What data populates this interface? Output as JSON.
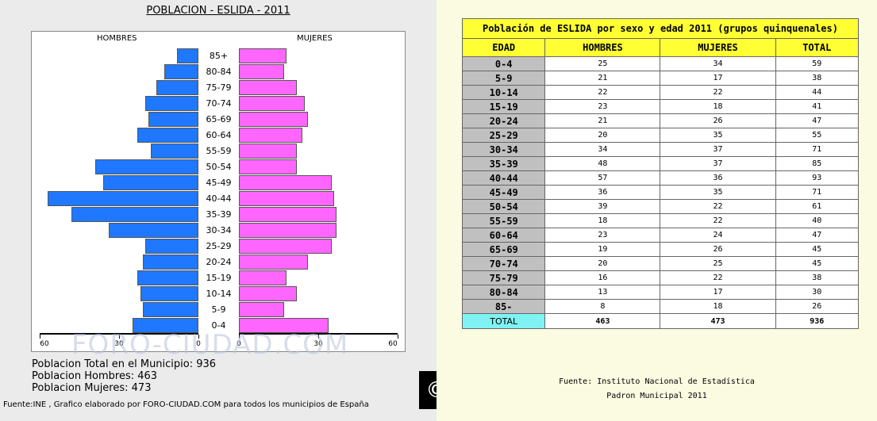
{
  "pyramid": {
    "title": "POBLACION - ESLIDA - 2011",
    "men_label": "HOMBRES",
    "women_label": "MUJERES",
    "watermark": "FORO-CIUDAD.COM",
    "summary": {
      "total": "Poblacion Total en el Municipio: 936",
      "men": "Poblacion Hombres: 463",
      "women": "Poblacion Mujeres: 473"
    },
    "source": "Fuente:INE , Grafico elaborado por FORO-CIUDAD.COM para todos los municipios de España",
    "colors": {
      "men": "#1f78ff",
      "women": "#ff66ff"
    }
  },
  "chart_data": [
    {
      "type": "bar",
      "orientation": "horizontal",
      "title": "POBLACION - ESLIDA - 2011",
      "categories": [
        "85+",
        "80-84",
        "75-79",
        "70-74",
        "65-69",
        "60-64",
        "55-59",
        "50-54",
        "45-49",
        "40-44",
        "35-39",
        "30-34",
        "25-29",
        "20-24",
        "15-19",
        "10-14",
        "5-9",
        "0-4"
      ],
      "series": [
        {
          "name": "HOMBRES",
          "values": [
            8,
            13,
            16,
            20,
            19,
            23,
            18,
            39,
            36,
            57,
            48,
            34,
            20,
            21,
            23,
            22,
            21,
            25
          ]
        },
        {
          "name": "MUJERES",
          "values": [
            18,
            17,
            22,
            25,
            26,
            24,
            22,
            22,
            35,
            36,
            37,
            37,
            35,
            26,
            18,
            22,
            17,
            34
          ]
        }
      ],
      "xticks": [
        "60",
        "30",
        "0",
        "0",
        "30",
        "60"
      ],
      "xlim": [
        0,
        60
      ],
      "grid": false
    },
    {
      "type": "table",
      "title": "Población de ESLIDA por sexo y edad 2011 (grupos quinquenales)",
      "columns": [
        "EDAD",
        "HOMBRES",
        "MUJERES",
        "TOTAL"
      ],
      "rows": [
        [
          "0-4",
          "25",
          "34",
          "59"
        ],
        [
          "5-9",
          "21",
          "17",
          "38"
        ],
        [
          "10-14",
          "22",
          "22",
          "44"
        ],
        [
          "15-19",
          "23",
          "18",
          "41"
        ],
        [
          "20-24",
          "21",
          "26",
          "47"
        ],
        [
          "25-29",
          "20",
          "35",
          "55"
        ],
        [
          "30-34",
          "34",
          "37",
          "71"
        ],
        [
          "35-39",
          "48",
          "37",
          "85"
        ],
        [
          "40-44",
          "57",
          "36",
          "93"
        ],
        [
          "45-49",
          "36",
          "35",
          "71"
        ],
        [
          "50-54",
          "39",
          "22",
          "61"
        ],
        [
          "55-59",
          "18",
          "22",
          "40"
        ],
        [
          "60-64",
          "23",
          "24",
          "47"
        ],
        [
          "65-69",
          "19",
          "26",
          "45"
        ],
        [
          "70-74",
          "20",
          "25",
          "45"
        ],
        [
          "75-79",
          "16",
          "22",
          "38"
        ],
        [
          "80-84",
          "13",
          "17",
          "30"
        ],
        [
          "85-",
          "8",
          "18",
          "26"
        ]
      ],
      "total": [
        "TOTAL",
        "463",
        "473",
        "936"
      ]
    }
  ],
  "table_source": {
    "line1": "Fuente: Instituto Nacional de Estadística",
    "line2": "Padron Municipal 2011"
  },
  "logo": "© apf"
}
